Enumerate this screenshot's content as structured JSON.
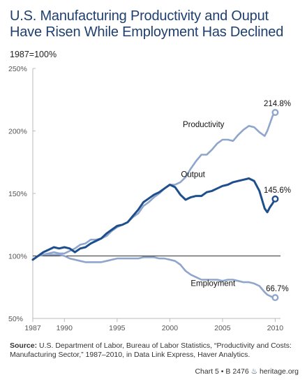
{
  "title_line1": "U.S. Manufacturing Productivity and Ouput",
  "title_line2": "Have Risen While Employment Has Declined",
  "unit_label": "1987=100%",
  "source_label": "Source:",
  "source_text": "U.S. Department of Labor, Bureau of Labor Statistics, “Productivity and Costs: Manufacturing Sector,” 1987–2010, in Data Link Express, Haver Analytics.",
  "footer_chart": "Chart 5 • B 2476",
  "footer_site": "heritage.org",
  "colors": {
    "title": "#1f3f6e",
    "output": "#1f4e8c",
    "light": "#8fa6cc",
    "baseline": "#333333",
    "axis": "#bbbbbb"
  },
  "chart_data": {
    "type": "line",
    "ylim": [
      50,
      250
    ],
    "xlim": [
      1987,
      2010.5
    ],
    "yticks": [
      50,
      100,
      150,
      200,
      250
    ],
    "ytick_labels": [
      "50%",
      "100%",
      "150%",
      "200%",
      "250%"
    ],
    "xticks": [
      1987,
      1990,
      1995,
      2000,
      2005,
      2010
    ],
    "xtick_labels": [
      "1987",
      "1990",
      "1995",
      "2000",
      "2005",
      "2010"
    ],
    "baseline": 100,
    "series": [
      {
        "name": "Productivity",
        "style": "light",
        "end_label": "214.8%",
        "x": [
          1987,
          1987.5,
          1988,
          1988.5,
          1989,
          1989.5,
          1990,
          1990.5,
          1991,
          1991.5,
          1992,
          1992.5,
          1993,
          1993.5,
          1994,
          1994.5,
          1995,
          1995.5,
          1996,
          1996.5,
          1997,
          1997.5,
          1998,
          1998.5,
          1999,
          1999.5,
          2000,
          2000.5,
          2001,
          2001.5,
          2002,
          2002.5,
          2003,
          2003.5,
          2004,
          2004.5,
          2005,
          2005.5,
          2006,
          2006.5,
          2007,
          2007.5,
          2008,
          2008.5,
          2009,
          2009.25,
          2009.5,
          2009.75,
          2010
        ],
        "values": [
          97,
          100,
          101,
          102,
          103,
          102,
          102,
          104,
          106,
          109,
          110,
          113,
          113,
          114,
          116,
          120,
          123,
          125,
          127,
          131,
          134,
          140,
          143,
          147,
          150,
          154,
          157,
          157,
          159,
          163,
          170,
          176,
          181,
          181,
          185,
          190,
          193,
          193,
          192,
          197,
          201,
          204,
          203,
          199,
          196,
          200,
          206,
          212,
          214.8
        ]
      },
      {
        "name": "Output",
        "style": "dark",
        "end_label": "145.6%",
        "x": [
          1987,
          1987.5,
          1988,
          1988.5,
          1989,
          1989.5,
          1990,
          1990.5,
          1991,
          1991.5,
          1992,
          1992.5,
          1993,
          1993.5,
          1994,
          1994.5,
          1995,
          1995.5,
          1996,
          1996.5,
          1997,
          1997.5,
          1998,
          1998.5,
          1999,
          1999.5,
          2000,
          2000.5,
          2001,
          2001.5,
          2002,
          2002.5,
          2003,
          2003.5,
          2004,
          2004.5,
          2005,
          2005.5,
          2006,
          2006.5,
          2007,
          2007.5,
          2008,
          2008.5,
          2009,
          2009.25,
          2009.5,
          2009.75,
          2010
        ],
        "values": [
          97,
          100,
          103,
          105,
          107,
          106,
          107,
          106,
          103,
          106,
          107,
          110,
          112,
          114,
          118,
          121,
          124,
          125,
          127,
          132,
          137,
          143,
          146,
          149,
          151,
          154,
          157,
          155,
          149,
          145,
          147,
          148,
          148,
          151,
          152,
          154,
          156,
          157,
          159,
          160,
          161,
          162,
          160,
          152,
          138,
          135,
          139,
          142,
          145.6
        ]
      },
      {
        "name": "Employment",
        "style": "light",
        "end_label": "66.7%",
        "x": [
          1987,
          1987.5,
          1988,
          1988.5,
          1989,
          1989.5,
          1990,
          1990.5,
          1991,
          1991.5,
          1992,
          1992.5,
          1993,
          1993.5,
          1994,
          1994.5,
          1995,
          1995.5,
          1996,
          1996.5,
          1997,
          1997.5,
          1998,
          1998.5,
          1999,
          1999.5,
          2000,
          2000.5,
          2001,
          2001.5,
          2002,
          2002.5,
          2003,
          2003.5,
          2004,
          2004.5,
          2005,
          2005.5,
          2006,
          2006.5,
          2007,
          2007.5,
          2008,
          2008.5,
          2009,
          2009.25,
          2009.5,
          2009.75,
          2010
        ],
        "values": [
          97,
          100,
          101,
          101,
          101,
          101,
          100,
          98,
          97,
          96,
          95,
          95,
          95,
          95,
          96,
          97,
          98,
          98,
          98,
          98,
          98,
          99,
          99,
          99,
          98,
          98,
          97,
          96,
          93,
          88,
          85,
          83,
          81,
          81,
          81,
          81,
          80,
          81,
          81,
          80,
          79,
          79,
          78,
          76,
          71,
          69,
          68,
          67,
          66.7
        ]
      }
    ]
  }
}
